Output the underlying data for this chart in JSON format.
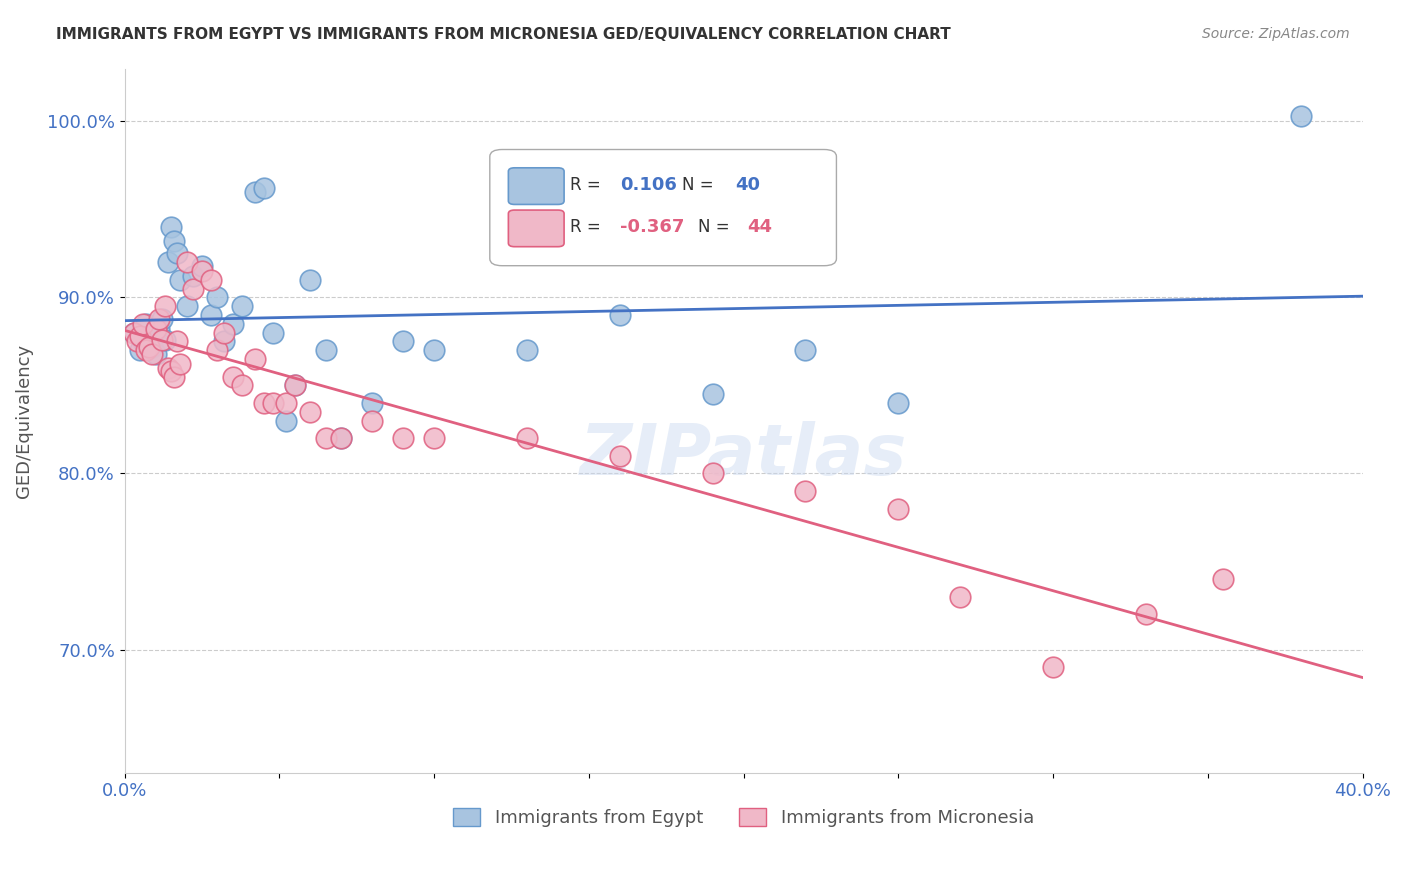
{
  "title": "IMMIGRANTS FROM EGYPT VS IMMIGRANTS FROM MICRONESIA GED/EQUIVALENCY CORRELATION CHART",
  "source": "Source: ZipAtlas.com",
  "ylabel": "GED/Equivalency",
  "xlabel": "",
  "xlim": [
    0.0,
    0.4
  ],
  "ylim": [
    0.63,
    1.03
  ],
  "xticks": [
    0.0,
    0.05,
    0.1,
    0.15,
    0.2,
    0.25,
    0.3,
    0.35,
    0.4
  ],
  "xticklabels": [
    "0.0%",
    "",
    "",
    "",
    "",
    "",
    "",
    "",
    "40.0%"
  ],
  "yticks": [
    0.7,
    0.8,
    0.9,
    1.0
  ],
  "yticklabels": [
    "70.0%",
    "80.0%",
    "90.0%",
    "100.0%"
  ],
  "grid_color": "#cccccc",
  "background_color": "#ffffff",
  "egypt_color": "#a8c4e0",
  "egypt_edge_color": "#6699cc",
  "micronesia_color": "#f0b8c8",
  "micronesia_edge_color": "#e06080",
  "egypt_R": 0.106,
  "egypt_N": 40,
  "micronesia_R": -0.367,
  "micronesia_N": 44,
  "egypt_trend_color": "#4472c4",
  "micronesia_trend_color": "#e06080",
  "legend_label_egypt": "Immigrants from Egypt",
  "legend_label_micronesia": "Immigrants from Micronesia",
  "watermark": "ZIPatlas",
  "egypt_x": [
    0.003,
    0.005,
    0.006,
    0.007,
    0.008,
    0.009,
    0.01,
    0.011,
    0.012,
    0.013,
    0.014,
    0.015,
    0.016,
    0.017,
    0.018,
    0.02,
    0.022,
    0.025,
    0.028,
    0.03,
    0.032,
    0.035,
    0.038,
    0.042,
    0.045,
    0.048,
    0.052,
    0.055,
    0.06,
    0.065,
    0.07,
    0.08,
    0.09,
    0.1,
    0.13,
    0.16,
    0.19,
    0.22,
    0.25,
    0.38
  ],
  "egypt_y": [
    0.88,
    0.87,
    0.875,
    0.885,
    0.878,
    0.872,
    0.868,
    0.882,
    0.888,
    0.876,
    0.92,
    0.94,
    0.932,
    0.925,
    0.91,
    0.895,
    0.912,
    0.918,
    0.89,
    0.9,
    0.875,
    0.885,
    0.895,
    0.96,
    0.962,
    0.88,
    0.83,
    0.85,
    0.91,
    0.87,
    0.82,
    0.84,
    0.875,
    0.87,
    0.87,
    0.89,
    0.845,
    0.87,
    0.84,
    1.003
  ],
  "micronesia_x": [
    0.003,
    0.004,
    0.005,
    0.006,
    0.007,
    0.008,
    0.009,
    0.01,
    0.011,
    0.012,
    0.013,
    0.014,
    0.015,
    0.016,
    0.017,
    0.018,
    0.02,
    0.022,
    0.025,
    0.028,
    0.03,
    0.032,
    0.035,
    0.038,
    0.042,
    0.045,
    0.048,
    0.052,
    0.055,
    0.06,
    0.065,
    0.07,
    0.08,
    0.09,
    0.1,
    0.13,
    0.16,
    0.19,
    0.22,
    0.25,
    0.27,
    0.3,
    0.33,
    0.355
  ],
  "micronesia_y": [
    0.88,
    0.875,
    0.878,
    0.885,
    0.87,
    0.872,
    0.868,
    0.882,
    0.888,
    0.876,
    0.895,
    0.86,
    0.858,
    0.855,
    0.875,
    0.862,
    0.92,
    0.905,
    0.915,
    0.91,
    0.87,
    0.88,
    0.855,
    0.85,
    0.865,
    0.84,
    0.84,
    0.84,
    0.85,
    0.835,
    0.82,
    0.82,
    0.83,
    0.82,
    0.82,
    0.82,
    0.81,
    0.8,
    0.79,
    0.78,
    0.73,
    0.69,
    0.72,
    0.74
  ]
}
